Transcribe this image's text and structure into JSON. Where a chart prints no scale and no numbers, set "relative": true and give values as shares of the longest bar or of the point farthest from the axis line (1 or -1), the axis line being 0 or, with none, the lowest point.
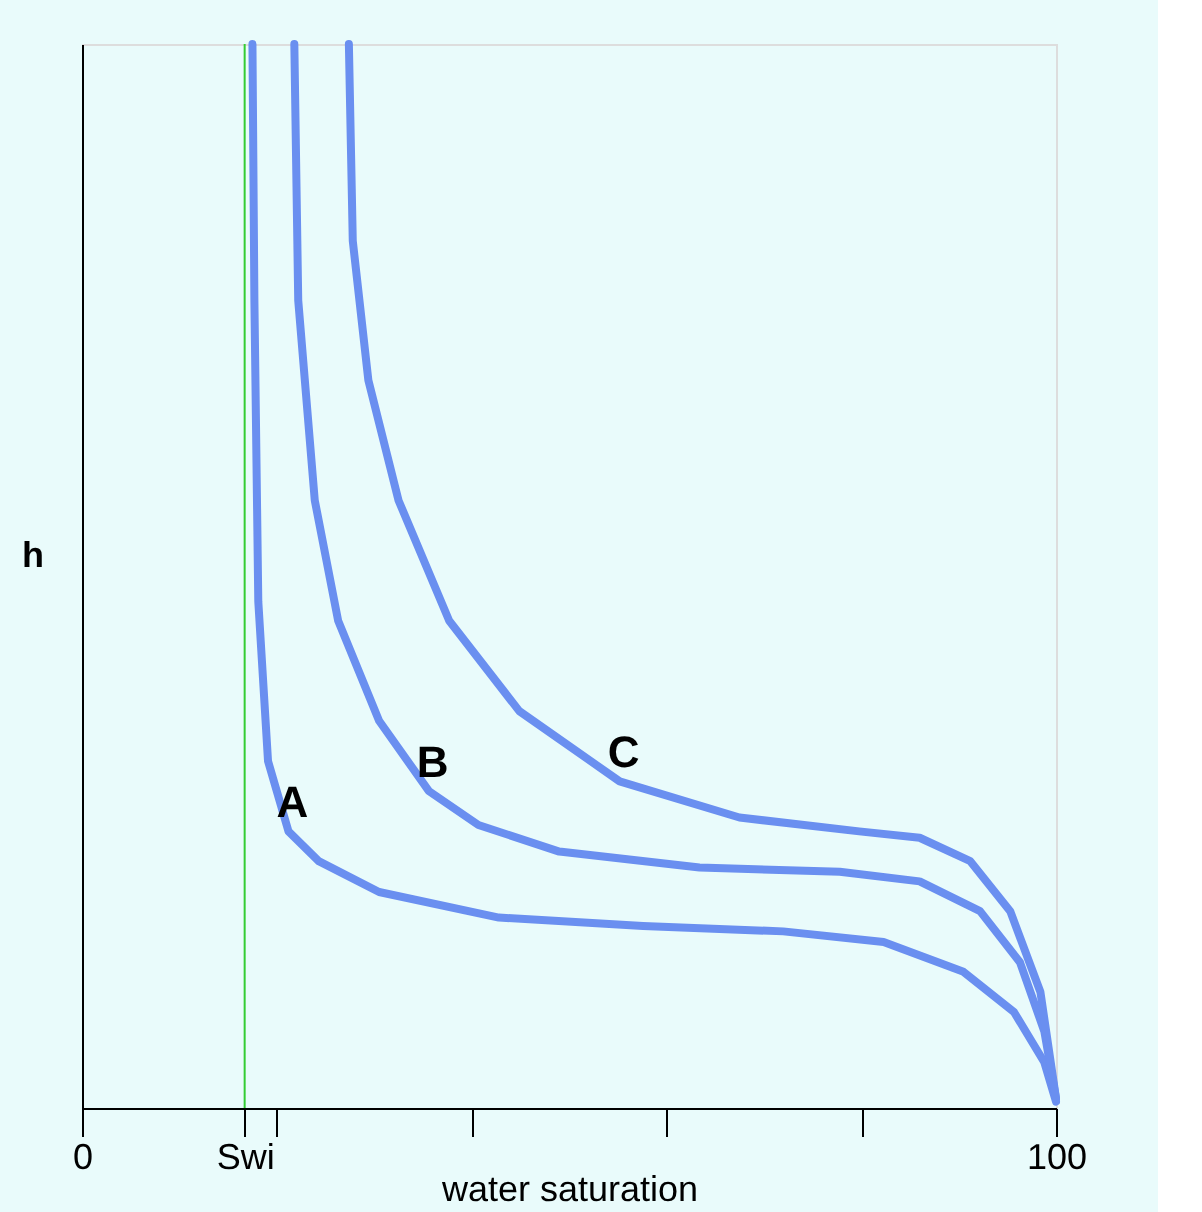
{
  "chart_data": {
    "type": "line",
    "xlabel": "water saturation",
    "ylabel": "h",
    "relative": true,
    "xlim": [
      0,
      100
    ],
    "xticks": [
      0,
      {
        "value": 16.7,
        "label": "Swi"
      },
      {
        "value": 20,
        "label": null
      },
      {
        "value": 40,
        "label": null
      },
      {
        "value": 60,
        "label": null
      },
      {
        "value": 80,
        "label": null
      },
      100
    ],
    "grid": false,
    "legend": false,
    "marker": "none",
    "line_style": "solid",
    "ref_lines": [
      {
        "axis": "x",
        "value": 16.7,
        "color": "#33cc33"
      }
    ],
    "series": [
      {
        "name": "A",
        "color": "#6a8ff0",
        "x": [
          17.5,
          17.7,
          18.1,
          19.1,
          21.2,
          24.3,
          30.5,
          42.8,
          57.6,
          72.0,
          82.3,
          90.5,
          95.7,
          98.8,
          100
        ],
        "values": [
          1,
          0.759,
          0.476,
          0.326,
          0.26,
          0.232,
          0.203,
          0.179,
          0.171,
          0.166,
          0.156,
          0.128,
          0.09,
          0.043,
          0.006
        ]
      },
      {
        "name": "B",
        "color": "#6a8ff0",
        "x": [
          21.8,
          22.2,
          23.9,
          26.3,
          30.5,
          35.6,
          40.7,
          49.0,
          63.4,
          77.8,
          86.0,
          92.2,
          96.3,
          98.8,
          100
        ],
        "values": [
          1,
          0.759,
          0.571,
          0.458,
          0.364,
          0.298,
          0.266,
          0.241,
          0.226,
          0.222,
          0.213,
          0.185,
          0.137,
          0.072,
          0.009
        ]
      },
      {
        "name": "C",
        "color": "#6a8ff0",
        "x": [
          27.4,
          27.8,
          29.4,
          32.5,
          37.7,
          44.9,
          55.2,
          67.5,
          79.8,
          86.0,
          91.2,
          95.3,
          98.4,
          100
        ],
        "values": [
          1,
          0.815,
          0.684,
          0.571,
          0.458,
          0.373,
          0.307,
          0.273,
          0.26,
          0.254,
          0.232,
          0.185,
          0.109,
          0.009
        ]
      }
    ]
  }
}
